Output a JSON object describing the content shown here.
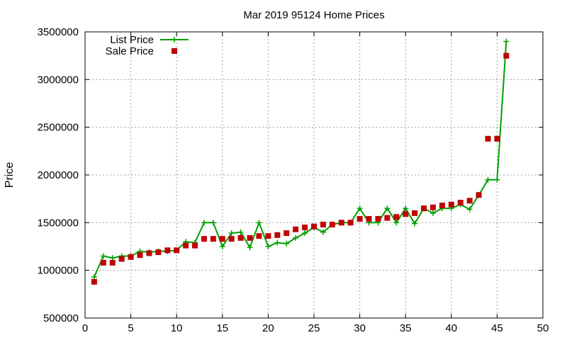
{
  "chart_data": {
    "type": "line",
    "title": "Mar 2019 95124 Home Prices",
    "xlabel": "",
    "ylabel": "Price",
    "xlim": [
      0,
      50
    ],
    "ylim": [
      500000,
      3500000
    ],
    "xticks": [
      0,
      5,
      10,
      15,
      20,
      25,
      30,
      35,
      40,
      45,
      50
    ],
    "yticks": [
      500000,
      1000000,
      1500000,
      2000000,
      2500000,
      3000000,
      3500000
    ],
    "grid": true,
    "legend_position": "top-left",
    "colors": {
      "list_price": "#00a000",
      "sale_price": "#c00000",
      "grid": "#a0a0a0",
      "axis": "#000000"
    },
    "x": [
      1,
      2,
      3,
      4,
      5,
      6,
      7,
      8,
      9,
      10,
      11,
      12,
      13,
      14,
      15,
      16,
      17,
      18,
      19,
      20,
      21,
      22,
      23,
      24,
      25,
      26,
      27,
      28,
      29,
      30,
      31,
      32,
      33,
      34,
      35,
      36,
      37,
      38,
      39,
      40,
      41,
      42,
      43,
      44,
      45,
      46
    ],
    "series": [
      {
        "name": "List Price",
        "style": "line-with-plus-markers",
        "color": "#00a000",
        "values": [
          930000,
          1150000,
          1130000,
          1150000,
          1150000,
          1200000,
          1190000,
          1200000,
          1200000,
          1210000,
          1300000,
          1290000,
          1500000,
          1500000,
          1250000,
          1390000,
          1400000,
          1240000,
          1500000,
          1250000,
          1290000,
          1280000,
          1340000,
          1390000,
          1450000,
          1400000,
          1480000,
          1500000,
          1500000,
          1650000,
          1500000,
          1500000,
          1650000,
          1500000,
          1650000,
          1490000,
          1650000,
          1600000,
          1650000,
          1650000,
          1690000,
          1640000,
          1790000,
          1950000,
          1950000,
          3400000
        ]
      },
      {
        "name": "Sale Price",
        "style": "square-markers",
        "color": "#c00000",
        "values": [
          880000,
          1080000,
          1080000,
          1120000,
          1140000,
          1160000,
          1180000,
          1190000,
          1210000,
          1210000,
          1260000,
          1260000,
          1330000,
          1330000,
          1330000,
          1330000,
          1340000,
          1340000,
          1360000,
          1360000,
          1370000,
          1390000,
          1430000,
          1450000,
          1460000,
          1480000,
          1480000,
          1500000,
          1500000,
          1540000,
          1540000,
          1540000,
          1550000,
          1560000,
          1590000,
          1600000,
          1650000,
          1660000,
          1680000,
          1690000,
          1710000,
          1730000,
          1790000,
          2380000,
          2380000,
          3250000
        ]
      }
    ]
  }
}
